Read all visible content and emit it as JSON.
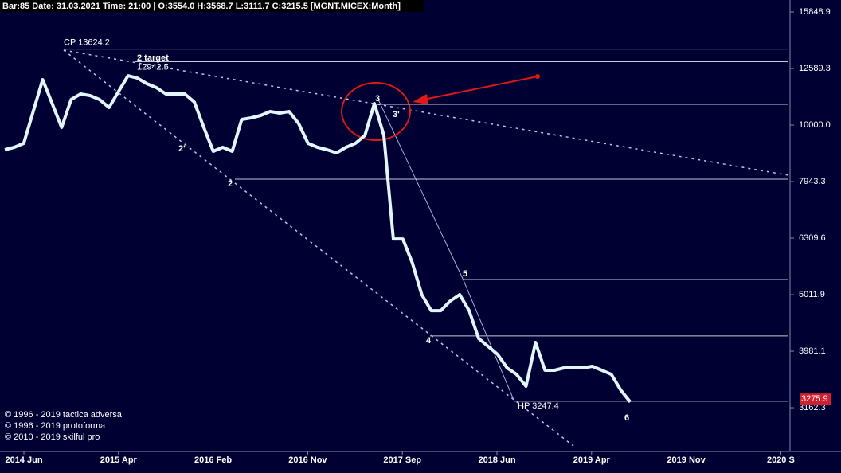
{
  "header": "Bar:85 Date: 31.03.2021 Time: 21:00 | O:3554.0 H:3568.7 L:3111.7 C:3215.5 [MGNT.MICEX:Month]",
  "chart_data": {
    "type": "line",
    "log_scale": true,
    "color": "#e2f6ff",
    "values": [
      9045,
      9133,
      9282,
      10566,
      12032,
      10915,
      9903,
      11094,
      11348,
      11274,
      11094,
      10740,
      11460,
      12224,
      12106,
      11834,
      11646,
      11348,
      11348,
      11348,
      10985,
      9903,
      8985,
      9133,
      8985,
      10230,
      10297,
      10397,
      10566,
      10498,
      10566,
      10065,
      9282,
      9133,
      9045,
      8927,
      9133,
      9282,
      9587,
      10915,
      9587,
      6288,
      6288,
      5707,
      5012,
      4696,
      4696,
      4884,
      5012,
      4696,
      4194,
      4060,
      3930,
      3719,
      3623,
      3451,
      4126,
      3683,
      3683,
      3719,
      3719,
      3719,
      3744,
      3683,
      3623,
      3396,
      3236
    ],
    "ylim": [
      2646,
      16640
    ],
    "yticks": [
      3162.3,
      3981.1,
      5011.9,
      6309.6,
      7943.3,
      {
        "value": 10000,
        "label": "10000.0"
      },
      12589.3,
      15848.9
    ],
    "xticks": [
      "2014 Jun",
      "2015 Apr",
      "2016 Feb",
      "2016 Nov",
      "2017 Sep",
      "2018 Jun",
      "2019 Apr",
      "2019 Nov",
      "2020 S"
    ],
    "levels": [
      {
        "value": 13624.2,
        "label": "CP 13624.2"
      },
      {
        "value": 12942.5,
        "label": "12942.5"
      },
      10880,
      8022,
      5332,
      4236,
      {
        "value": 3247.4,
        "label": "HP 3247.4"
      }
    ],
    "last_price": 3275.9,
    "wave_labels": [
      "2 target",
      "2'",
      "2",
      "3",
      "3'",
      "4",
      "5",
      "6"
    ]
  },
  "copyright": [
    "© 1996 - 2019 tactica adversa",
    "© 1996 - 2019 protoforma",
    "© 2010 - 2019 skilful pro"
  ]
}
